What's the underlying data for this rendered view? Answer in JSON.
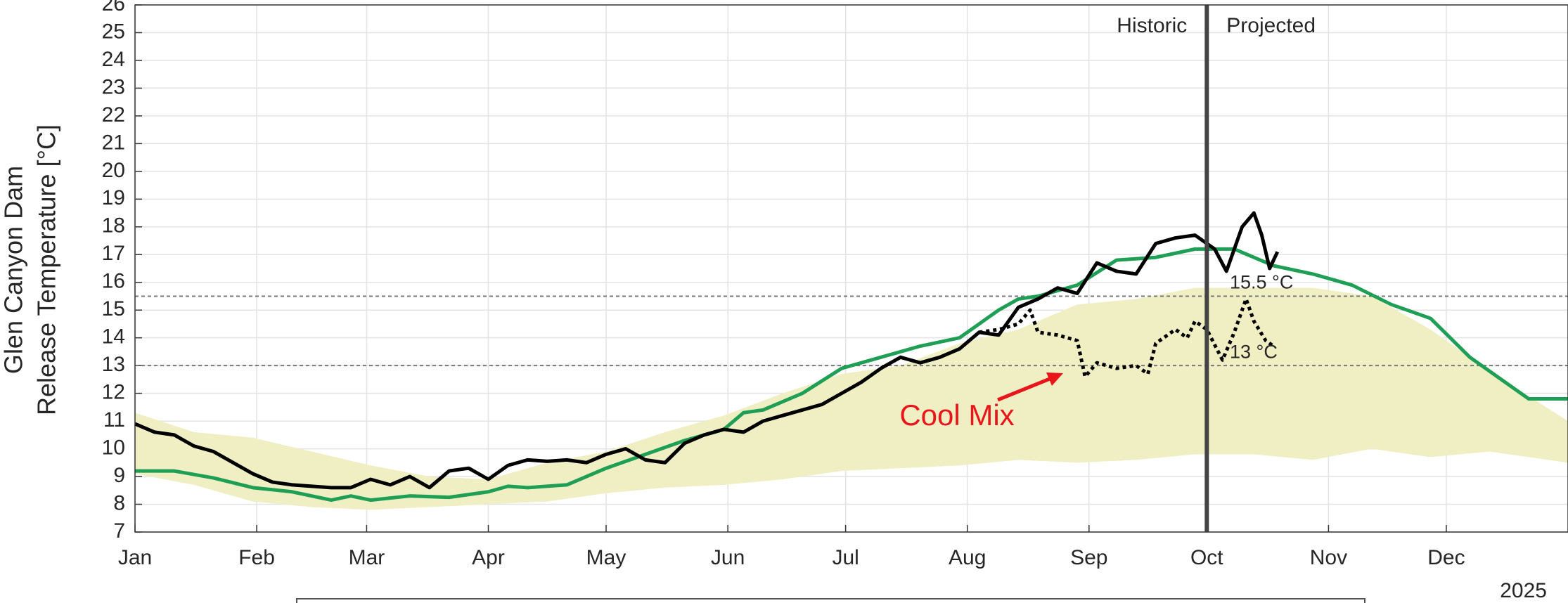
{
  "chart_data": {
    "type": "line",
    "ylabel": [
      "Glen Canyon Dam",
      "Release Temperature [°C]"
    ],
    "year_label": "2025",
    "xlim": [
      0,
      365
    ],
    "xticks": [
      {
        "value": 0,
        "label": "Jan"
      },
      {
        "value": 31,
        "label": "Feb"
      },
      {
        "value": 59,
        "label": "Mar"
      },
      {
        "value": 90,
        "label": "Apr"
      },
      {
        "value": 120,
        "label": "May"
      },
      {
        "value": 151,
        "label": "Jun"
      },
      {
        "value": 181,
        "label": "Jul"
      },
      {
        "value": 212,
        "label": "Aug"
      },
      {
        "value": 243,
        "label": "Sep"
      },
      {
        "value": 273,
        "label": "Oct"
      },
      {
        "value": 304,
        "label": "Nov"
      },
      {
        "value": 334,
        "label": "Dec"
      }
    ],
    "ylim": [
      7,
      26
    ],
    "yticks": [
      7,
      8,
      9,
      10,
      11,
      12,
      13,
      14,
      15,
      16,
      17,
      18,
      19,
      20,
      21,
      22,
      23,
      24,
      25,
      26
    ],
    "grid": true,
    "band": {
      "color": "#efefc3",
      "x": [
        0,
        15,
        30,
        45,
        60,
        75,
        90,
        105,
        120,
        135,
        150,
        165,
        180,
        195,
        210,
        225,
        240,
        255,
        270,
        285,
        300,
        315,
        330,
        345,
        365
      ],
      "lower": [
        9.1,
        8.7,
        8.1,
        7.9,
        7.8,
        7.9,
        8.0,
        8.1,
        8.4,
        8.6,
        8.7,
        8.9,
        9.2,
        9.3,
        9.4,
        9.6,
        9.5,
        9.6,
        9.8,
        9.8,
        9.6,
        10.0,
        9.7,
        9.9,
        9.5
      ],
      "upper": [
        11.3,
        10.6,
        10.4,
        9.9,
        9.4,
        9.0,
        8.9,
        9.5,
        9.9,
        10.6,
        11.2,
        12.0,
        12.7,
        13.0,
        13.8,
        14.3,
        15.2,
        15.4,
        15.8,
        15.8,
        15.8,
        15.5,
        14.3,
        12.8,
        11.0
      ]
    },
    "series": [
      {
        "color": "#1f9e55",
        "style": "solid",
        "width": 5,
        "x": [
          0,
          10,
          20,
          30,
          40,
          45,
          50,
          55,
          60,
          70,
          80,
          90,
          95,
          100,
          110,
          120,
          130,
          140,
          150,
          155,
          160,
          170,
          180,
          190,
          200,
          210,
          220,
          225,
          230,
          240,
          250,
          260,
          270,
          280,
          290,
          300,
          310,
          320,
          330,
          340,
          350,
          355,
          365
        ],
        "values": [
          9.2,
          9.2,
          8.95,
          8.6,
          8.45,
          8.3,
          8.15,
          8.3,
          8.15,
          8.3,
          8.25,
          8.45,
          8.65,
          8.6,
          8.7,
          9.3,
          9.8,
          10.3,
          10.7,
          11.3,
          11.4,
          12.0,
          12.9,
          13.3,
          13.7,
          14.0,
          15.0,
          15.4,
          15.5,
          15.9,
          16.8,
          16.9,
          17.2,
          17.2,
          16.6,
          16.3,
          15.9,
          15.2,
          14.7,
          13.3,
          12.3,
          11.8,
          11.8
        ]
      },
      {
        "color": "#000000",
        "style": "solid",
        "width": 5,
        "x": [
          0,
          5,
          10,
          15,
          20,
          25,
          30,
          35,
          40,
          45,
          50,
          55,
          60,
          65,
          70,
          75,
          80,
          85,
          90,
          95,
          100,
          105,
          110,
          115,
          120,
          125,
          130,
          135,
          140,
          145,
          150,
          155,
          160,
          165,
          170,
          175,
          180,
          185,
          190,
          195,
          200,
          205,
          210,
          215,
          220,
          225,
          230,
          235,
          240,
          245,
          250,
          255,
          260,
          265,
          270,
          275,
          278,
          282,
          285,
          287,
          289,
          291
        ],
        "values": [
          10.9,
          10.6,
          10.5,
          10.1,
          9.9,
          9.5,
          9.1,
          8.8,
          8.7,
          8.65,
          8.6,
          8.6,
          8.9,
          8.7,
          9.0,
          8.6,
          9.2,
          9.3,
          8.9,
          9.4,
          9.6,
          9.55,
          9.6,
          9.5,
          9.8,
          10.0,
          9.6,
          9.5,
          10.2,
          10.5,
          10.7,
          10.6,
          11.0,
          11.2,
          11.4,
          11.6,
          12.0,
          12.4,
          12.9,
          13.3,
          13.1,
          13.3,
          13.6,
          14.2,
          14.1,
          15.1,
          15.4,
          15.8,
          15.6,
          16.7,
          16.4,
          16.3,
          17.4,
          17.6,
          17.7,
          17.2,
          16.4,
          18.0,
          18.5,
          17.7,
          16.5,
          17.1
        ]
      },
      {
        "color": "#000000",
        "style": "dotted",
        "width": 5,
        "x": [
          215,
          220,
          225,
          228,
          230,
          235,
          240,
          242,
          245,
          250,
          255,
          258,
          260,
          265,
          268,
          270,
          273,
          277,
          280,
          283,
          285,
          288,
          290
        ],
        "values": [
          14.2,
          14.3,
          14.5,
          15.0,
          14.2,
          14.1,
          13.9,
          12.6,
          13.1,
          12.9,
          13.0,
          12.7,
          13.8,
          14.3,
          14.0,
          14.6,
          14.3,
          13.2,
          14.2,
          15.4,
          14.6,
          13.9,
          13.7
        ]
      }
    ],
    "hlines": [
      {
        "value": 15.5,
        "label": "15.5 °C"
      },
      {
        "value": 13,
        "label": "13 °C"
      }
    ],
    "vline": {
      "value": 273,
      "labels": [
        "Historic",
        "Projected"
      ]
    },
    "annotation": {
      "text": "Cool Mix",
      "color": "#e8161b"
    }
  }
}
